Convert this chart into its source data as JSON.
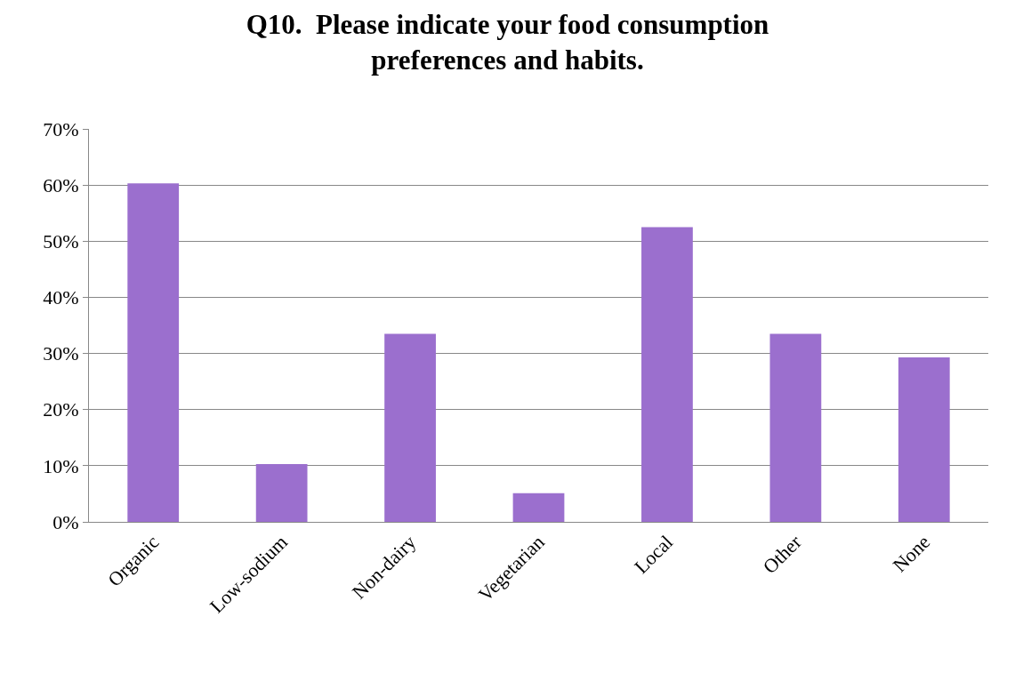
{
  "chart_data": {
    "type": "bar",
    "title": "Q10.  Please indicate your food consumption preferences and habits.",
    "categories": [
      "Organic",
      "Low-sodium",
      "Non-dairy",
      "Vegetarian",
      "Local",
      "Other",
      "None"
    ],
    "values": [
      60.3,
      10.3,
      33.5,
      5.1,
      52.5,
      33.5,
      29.3
    ],
    "color": "#9b6fce",
    "ylim": [
      0,
      70
    ],
    "yticks": [
      {
        "value": 0,
        "label": "0%"
      },
      {
        "value": 10,
        "label": "10%"
      },
      {
        "value": 20,
        "label": "20%"
      },
      {
        "value": 30,
        "label": "30%"
      },
      {
        "value": 40,
        "label": "40%"
      },
      {
        "value": 50,
        "label": "50%"
      },
      {
        "value": 60,
        "label": "60%"
      },
      {
        "value": 70,
        "label": "70%"
      }
    ],
    "grid": "y",
    "legend": false
  }
}
